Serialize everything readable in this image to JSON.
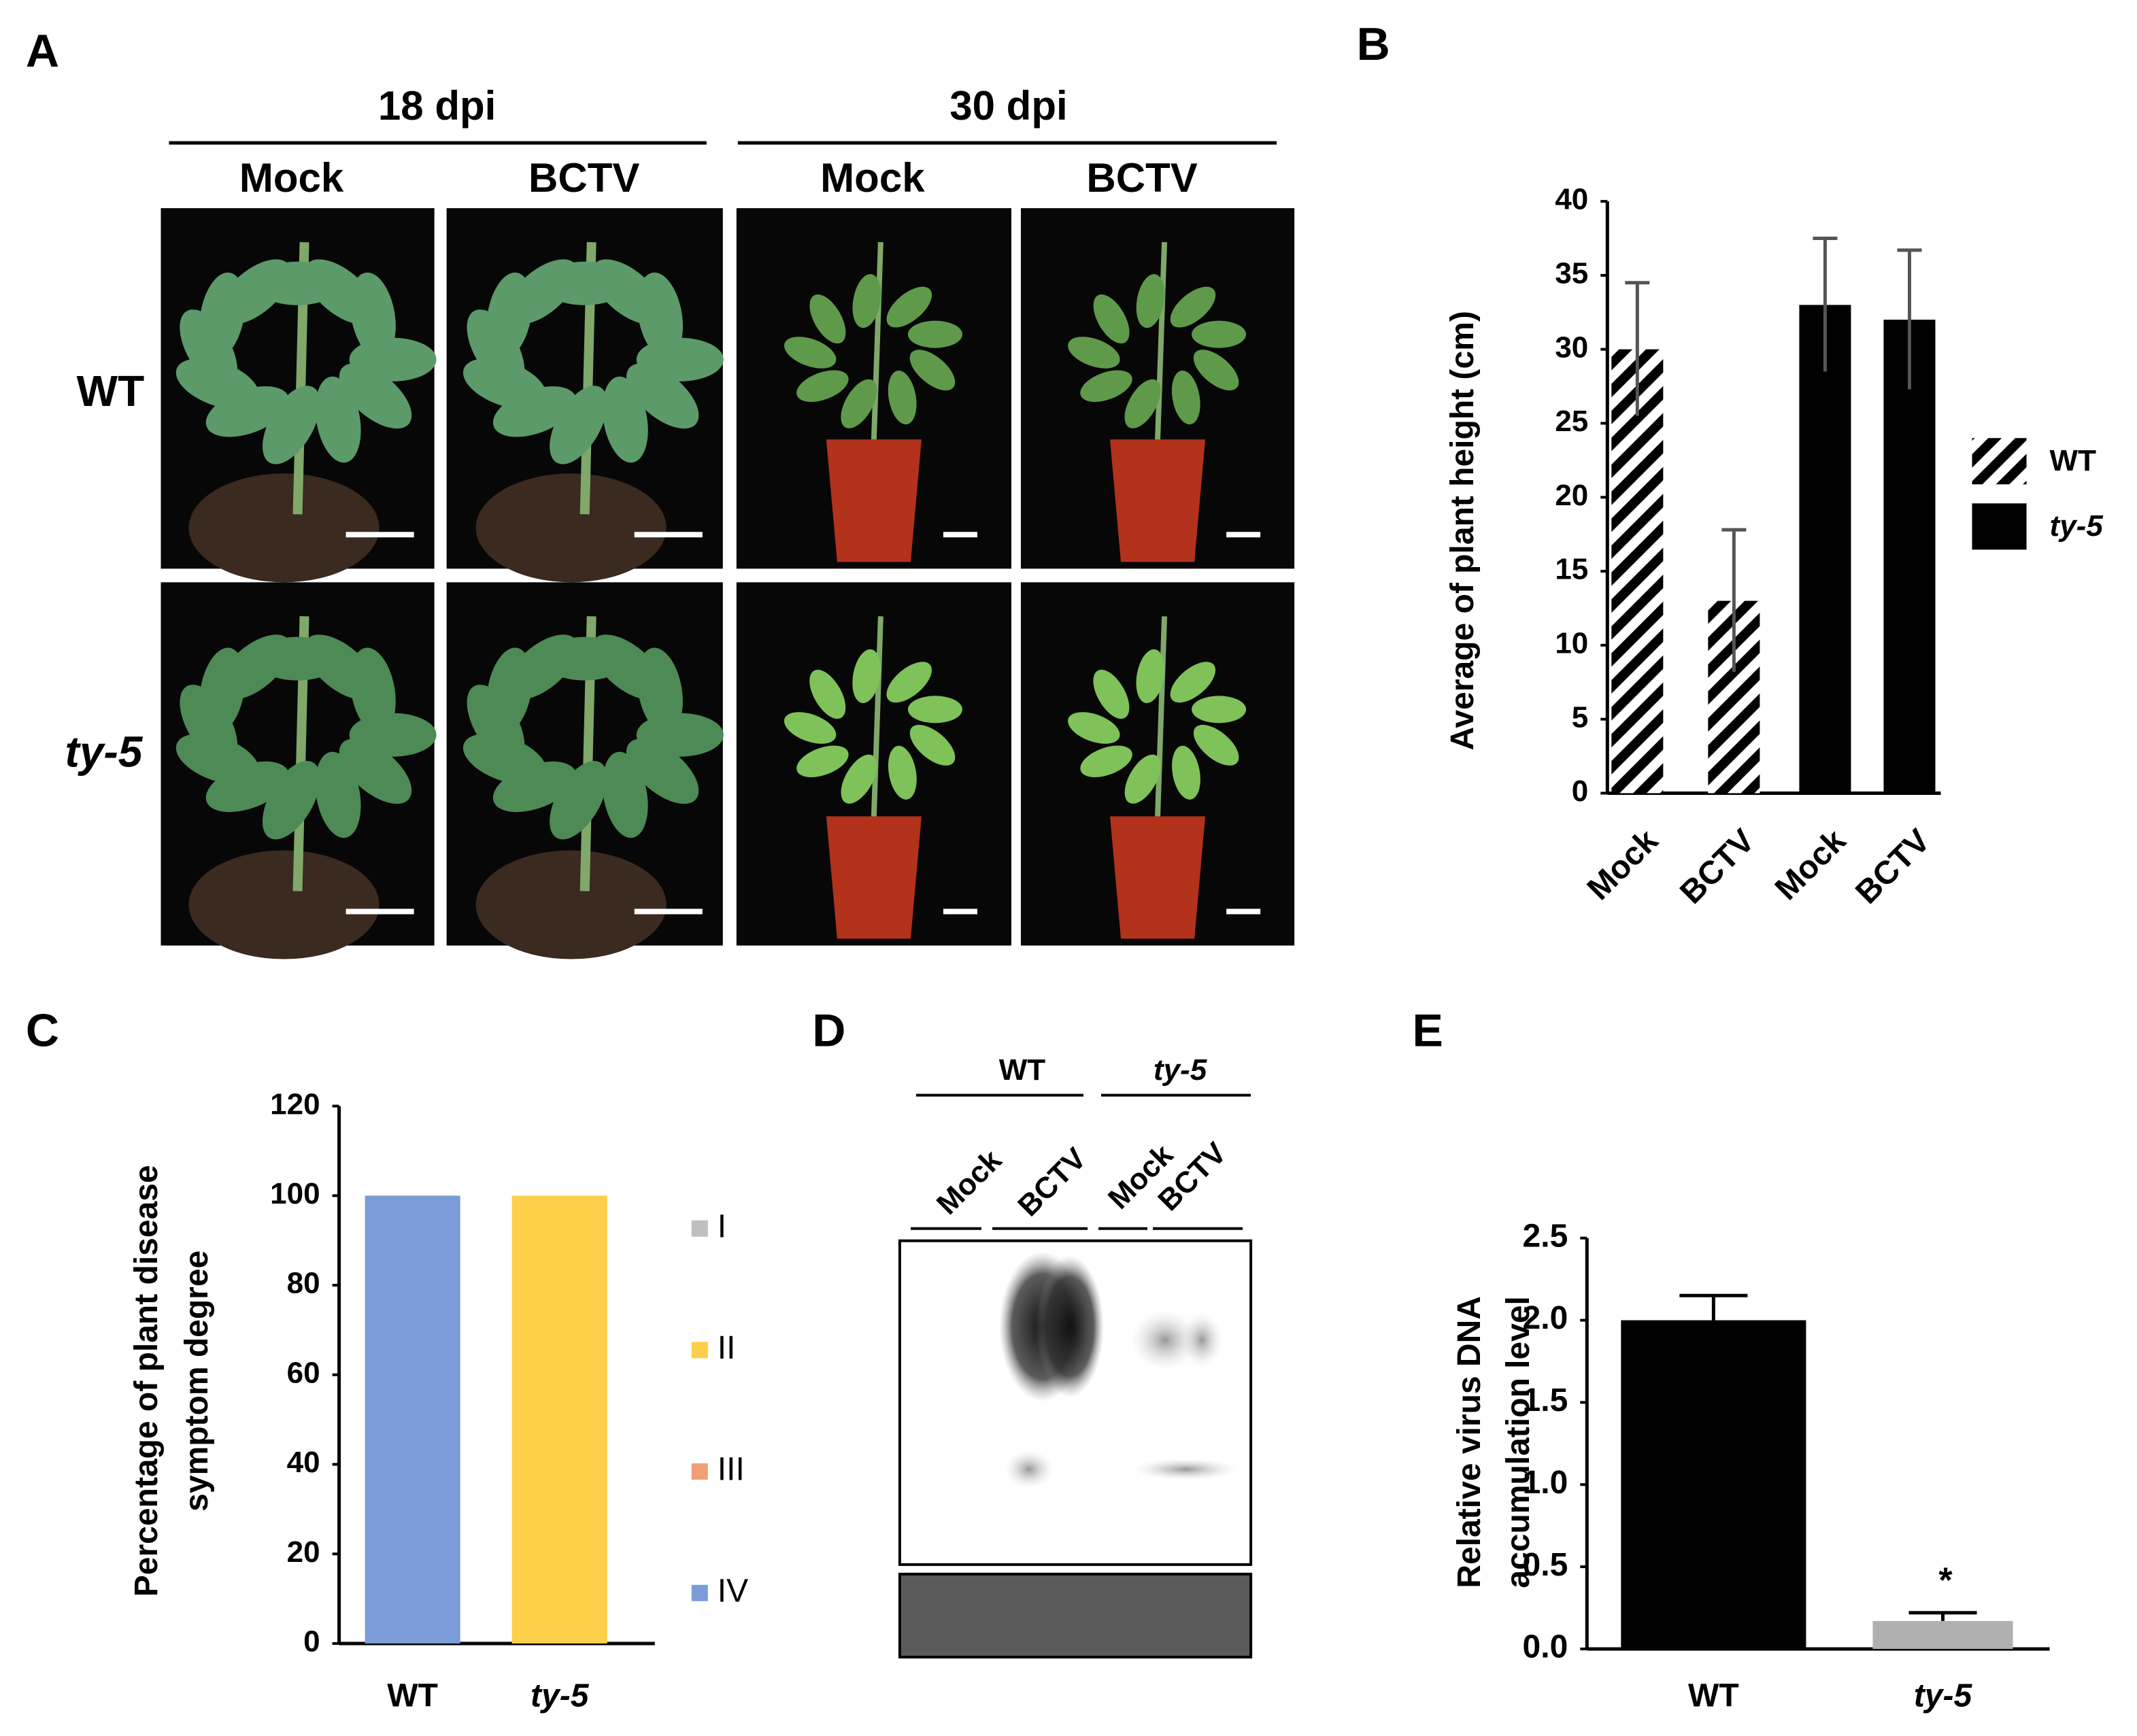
{
  "panel_labels": [
    "A",
    "B",
    "C",
    "D",
    "E"
  ],
  "panel_a": {
    "time_points": [
      "18 dpi",
      "30  dpi"
    ],
    "treatments": [
      "Mock",
      "BCTV",
      "Mock",
      "BCTV"
    ],
    "genotypes": [
      "WT",
      "ty-5"
    ]
  },
  "panel_d": {
    "genotypes": [
      "WT",
      "ty-5"
    ],
    "lanes": [
      "Mock",
      "BCTV",
      "Mock",
      "BCTV"
    ]
  },
  "chart_data": [
    {
      "type": "bar",
      "ylabel": "Average of plant  height (cm)",
      "categories": [
        "Mock",
        "BCTV",
        "Mock",
        "BCTV"
      ],
      "series": [
        {
          "name": "WT",
          "color": "#000000",
          "hatch": true,
          "values": [
            30,
            13,
            null,
            null
          ],
          "errors": [
            4.5,
            4.8,
            null,
            null
          ]
        },
        {
          "name": "ty-5",
          "color": "#000000",
          "hatch": false,
          "values": [
            null,
            null,
            33,
            32
          ],
          "errors": [
            null,
            null,
            4.5,
            4.7
          ]
        }
      ],
      "ylim": [
        0,
        40
      ],
      "yticks": [
        0,
        5,
        10,
        15,
        20,
        25,
        30,
        35,
        40
      ]
    },
    {
      "type": "stacked-bar",
      "ylabel": [
        "Percentage of plant disease",
        "symptom degree"
      ],
      "categories": [
        "WT",
        "ty-5"
      ],
      "series": [
        {
          "name": "I",
          "color": "#bfbfbf",
          "values": [
            0,
            0
          ]
        },
        {
          "name": "II",
          "color": "#fdcf4a",
          "values": [
            0,
            100
          ]
        },
        {
          "name": "III",
          "color": "#f0a074",
          "values": [
            0,
            0
          ]
        },
        {
          "name": "IV",
          "color": "#7b9cd6",
          "values": [
            100,
            0
          ]
        }
      ],
      "ylim": [
        0,
        120
      ],
      "yticks": [
        0,
        20,
        40,
        60,
        80,
        100,
        120
      ]
    },
    {
      "type": "bar",
      "ylabel": [
        "Relative virus DNA",
        "accumulation  level"
      ],
      "categories": [
        "WT",
        "ty-5"
      ],
      "values": [
        2.0,
        0.17
      ],
      "errors": [
        0.15,
        0.05
      ],
      "colors": [
        "#000000",
        "#b0b0b0"
      ],
      "annotations": [
        null,
        "*"
      ],
      "ylim": [
        0,
        2.5
      ],
      "yticks": [
        {
          "value": 0,
          "label": "0.0"
        },
        0.5,
        {
          "value": 1,
          "label": "1.0"
        },
        1.5,
        {
          "value": 2,
          "label": "2.0"
        },
        2.5
      ]
    }
  ]
}
